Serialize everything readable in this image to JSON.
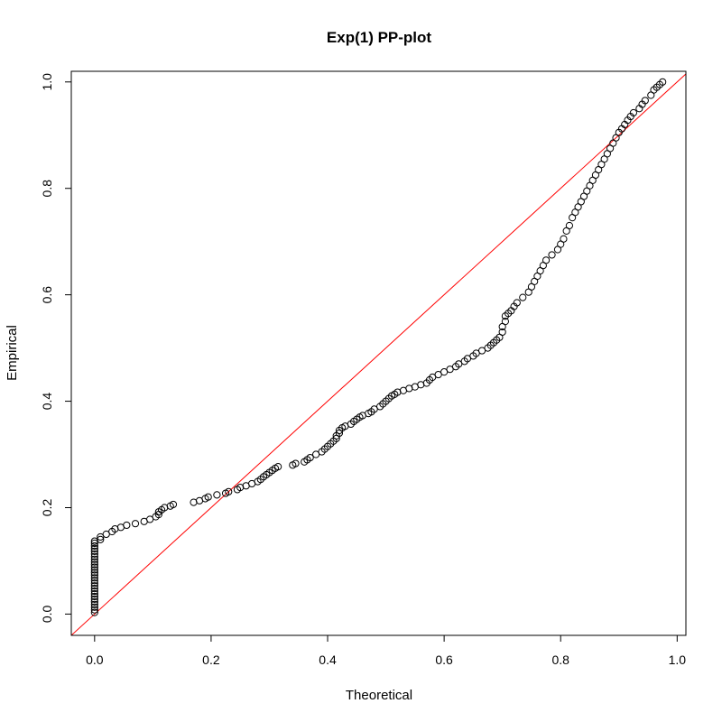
{
  "chart_data": {
    "type": "scatter",
    "title": "Exp(1) PP-plot",
    "xlabel": "Theoretical",
    "ylabel": "Empirical",
    "xlim": [
      -0.04,
      1.015
    ],
    "ylim": [
      -0.04,
      1.02
    ],
    "xticks": [
      0.0,
      0.2,
      0.4,
      0.6,
      0.8,
      1.0
    ],
    "yticks": [
      0.0,
      0.2,
      0.4,
      0.6,
      0.8,
      1.0
    ],
    "xtick_labels": [
      "0.0",
      "0.2",
      "0.4",
      "0.6",
      "0.8",
      "1.0"
    ],
    "ytick_labels": [
      "0.0",
      "0.2",
      "0.4",
      "0.6",
      "0.8",
      "1.0"
    ],
    "grid": false,
    "reference_line": {
      "slope": 1,
      "intercept": 0,
      "color": "#ff0000"
    },
    "point_color": "#000000",
    "series": [
      {
        "points": [
          [
            0.0,
            0.003
          ],
          [
            0.0,
            0.008
          ],
          [
            0.0,
            0.013
          ],
          [
            0.0,
            0.018
          ],
          [
            0.0,
            0.023
          ],
          [
            0.0,
            0.028
          ],
          [
            0.0,
            0.033
          ],
          [
            0.0,
            0.038
          ],
          [
            0.0,
            0.043
          ],
          [
            0.0,
            0.048
          ],
          [
            0.0,
            0.053
          ],
          [
            0.0,
            0.058
          ],
          [
            0.0,
            0.063
          ],
          [
            0.0,
            0.068
          ],
          [
            0.0,
            0.073
          ],
          [
            0.0,
            0.078
          ],
          [
            0.0,
            0.083
          ],
          [
            0.0,
            0.088
          ],
          [
            0.0,
            0.093
          ],
          [
            0.0,
            0.098
          ],
          [
            0.0,
            0.103
          ],
          [
            0.0,
            0.108
          ],
          [
            0.0,
            0.113
          ],
          [
            0.0,
            0.118
          ],
          [
            0.0,
            0.123
          ],
          [
            0.0,
            0.128
          ],
          [
            0.0,
            0.133
          ],
          [
            0.0,
            0.137
          ],
          [
            0.01,
            0.14
          ],
          [
            0.01,
            0.145
          ],
          [
            0.02,
            0.15
          ],
          [
            0.03,
            0.155
          ],
          [
            0.035,
            0.16
          ],
          [
            0.045,
            0.163
          ],
          [
            0.055,
            0.167
          ],
          [
            0.07,
            0.17
          ],
          [
            0.085,
            0.174
          ],
          [
            0.095,
            0.178
          ],
          [
            0.105,
            0.183
          ],
          [
            0.11,
            0.187
          ],
          [
            0.11,
            0.192
          ],
          [
            0.115,
            0.196
          ],
          [
            0.12,
            0.2
          ],
          [
            0.13,
            0.203
          ],
          [
            0.135,
            0.206
          ],
          [
            0.17,
            0.21
          ],
          [
            0.18,
            0.213
          ],
          [
            0.19,
            0.217
          ],
          [
            0.195,
            0.22
          ],
          [
            0.21,
            0.224
          ],
          [
            0.225,
            0.227
          ],
          [
            0.23,
            0.23
          ],
          [
            0.245,
            0.234
          ],
          [
            0.25,
            0.238
          ],
          [
            0.26,
            0.241
          ],
          [
            0.27,
            0.245
          ],
          [
            0.28,
            0.249
          ],
          [
            0.285,
            0.253
          ],
          [
            0.29,
            0.258
          ],
          [
            0.295,
            0.262
          ],
          [
            0.3,
            0.266
          ],
          [
            0.305,
            0.27
          ],
          [
            0.31,
            0.274
          ],
          [
            0.315,
            0.277
          ],
          [
            0.34,
            0.28
          ],
          [
            0.345,
            0.283
          ],
          [
            0.36,
            0.286
          ],
          [
            0.365,
            0.29
          ],
          [
            0.37,
            0.294
          ],
          [
            0.38,
            0.3
          ],
          [
            0.39,
            0.305
          ],
          [
            0.395,
            0.31
          ],
          [
            0.4,
            0.315
          ],
          [
            0.405,
            0.32
          ],
          [
            0.41,
            0.325
          ],
          [
            0.415,
            0.33
          ],
          [
            0.415,
            0.335
          ],
          [
            0.42,
            0.34
          ],
          [
            0.42,
            0.345
          ],
          [
            0.425,
            0.35
          ],
          [
            0.43,
            0.353
          ],
          [
            0.44,
            0.357
          ],
          [
            0.445,
            0.362
          ],
          [
            0.45,
            0.366
          ],
          [
            0.455,
            0.37
          ],
          [
            0.46,
            0.373
          ],
          [
            0.47,
            0.377
          ],
          [
            0.475,
            0.38
          ],
          [
            0.48,
            0.385
          ],
          [
            0.49,
            0.39
          ],
          [
            0.495,
            0.395
          ],
          [
            0.5,
            0.4
          ],
          [
            0.505,
            0.405
          ],
          [
            0.51,
            0.41
          ],
          [
            0.515,
            0.413
          ],
          [
            0.52,
            0.417
          ],
          [
            0.53,
            0.42
          ],
          [
            0.54,
            0.424
          ],
          [
            0.55,
            0.427
          ],
          [
            0.56,
            0.431
          ],
          [
            0.57,
            0.434
          ],
          [
            0.575,
            0.44
          ],
          [
            0.58,
            0.445
          ],
          [
            0.59,
            0.45
          ],
          [
            0.6,
            0.455
          ],
          [
            0.61,
            0.46
          ],
          [
            0.62,
            0.465
          ],
          [
            0.625,
            0.47
          ],
          [
            0.635,
            0.475
          ],
          [
            0.64,
            0.48
          ],
          [
            0.65,
            0.485
          ],
          [
            0.655,
            0.49
          ],
          [
            0.665,
            0.495
          ],
          [
            0.675,
            0.5
          ],
          [
            0.68,
            0.505
          ],
          [
            0.685,
            0.51
          ],
          [
            0.69,
            0.515
          ],
          [
            0.695,
            0.52
          ],
          [
            0.7,
            0.53
          ],
          [
            0.7,
            0.54
          ],
          [
            0.705,
            0.55
          ],
          [
            0.705,
            0.56
          ],
          [
            0.71,
            0.565
          ],
          [
            0.715,
            0.57
          ],
          [
            0.72,
            0.578
          ],
          [
            0.725,
            0.585
          ],
          [
            0.735,
            0.595
          ],
          [
            0.745,
            0.605
          ],
          [
            0.75,
            0.615
          ],
          [
            0.755,
            0.625
          ],
          [
            0.76,
            0.635
          ],
          [
            0.765,
            0.645
          ],
          [
            0.77,
            0.655
          ],
          [
            0.775,
            0.665
          ],
          [
            0.785,
            0.675
          ],
          [
            0.795,
            0.685
          ],
          [
            0.8,
            0.695
          ],
          [
            0.805,
            0.705
          ],
          [
            0.81,
            0.72
          ],
          [
            0.815,
            0.73
          ],
          [
            0.82,
            0.745
          ],
          [
            0.825,
            0.755
          ],
          [
            0.83,
            0.765
          ],
          [
            0.835,
            0.775
          ],
          [
            0.84,
            0.785
          ],
          [
            0.845,
            0.795
          ],
          [
            0.85,
            0.805
          ],
          [
            0.855,
            0.815
          ],
          [
            0.86,
            0.825
          ],
          [
            0.865,
            0.835
          ],
          [
            0.87,
            0.845
          ],
          [
            0.875,
            0.855
          ],
          [
            0.88,
            0.865
          ],
          [
            0.885,
            0.875
          ],
          [
            0.89,
            0.885
          ],
          [
            0.895,
            0.895
          ],
          [
            0.9,
            0.905
          ],
          [
            0.905,
            0.912
          ],
          [
            0.91,
            0.92
          ],
          [
            0.915,
            0.928
          ],
          [
            0.92,
            0.935
          ],
          [
            0.925,
            0.942
          ],
          [
            0.935,
            0.95
          ],
          [
            0.94,
            0.958
          ],
          [
            0.945,
            0.965
          ],
          [
            0.955,
            0.975
          ],
          [
            0.96,
            0.985
          ],
          [
            0.965,
            0.99
          ],
          [
            0.97,
            0.995
          ],
          [
            0.975,
            1.0
          ]
        ]
      }
    ]
  }
}
